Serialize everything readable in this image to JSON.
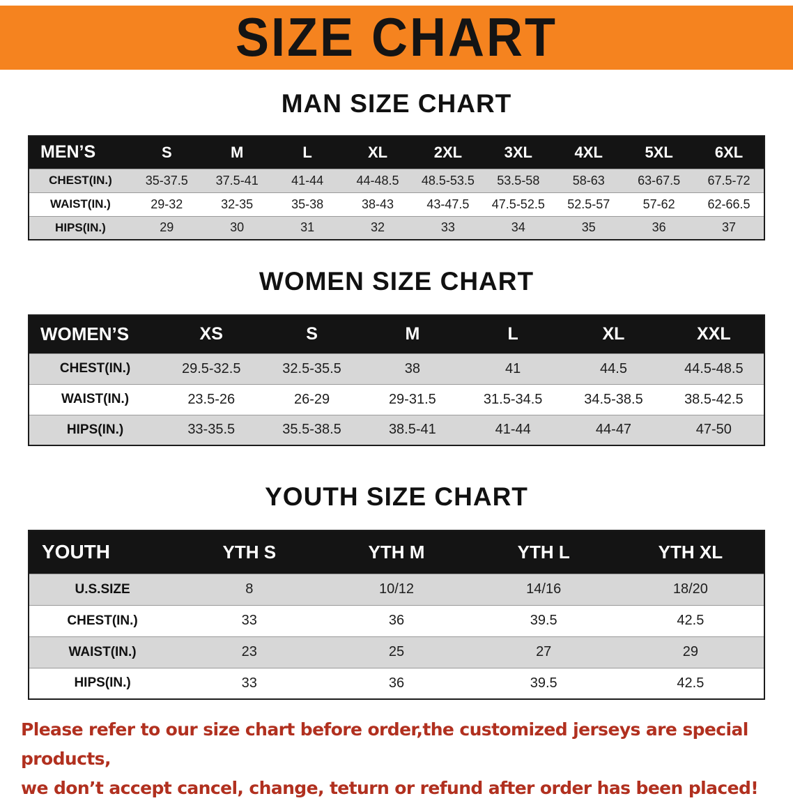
{
  "banner": {
    "title": "SIZE CHART",
    "bg_color": "#F5831F",
    "text_color": "#141414"
  },
  "colors": {
    "header_bar": "#141414",
    "stripe_gray": "#d7d7d7",
    "footnote_red": "#b1301f"
  },
  "sections": {
    "men": {
      "heading": "MAN SIZE CHART",
      "table": {
        "header": [
          "MEN’S",
          "S",
          "M",
          "L",
          "XL",
          "2XL",
          "3XL",
          "4XL",
          "5XL",
          "6XL"
        ],
        "rows": [
          [
            "CHEST(IN.)",
            "35-37.5",
            "37.5-41",
            "41-44",
            "44-48.5",
            "48.5-53.5",
            "53.5-58",
            "58-63",
            "63-67.5",
            "67.5-72"
          ],
          [
            "WAIST(IN.)",
            "29-32",
            "32-35",
            "35-38",
            "38-43",
            "43-47.5",
            "47.5-52.5",
            "52.5-57",
            "57-62",
            "62-66.5"
          ],
          [
            "HIPS(IN.)",
            "29",
            "30",
            "31",
            "32",
            "33",
            "34",
            "35",
            "36",
            "37"
          ]
        ]
      }
    },
    "women": {
      "heading": "WOMEN SIZE CHART",
      "table": {
        "header": [
          "WOMEN’S",
          "XS",
          "S",
          "M",
          "L",
          "XL",
          "XXL"
        ],
        "rows": [
          [
            "CHEST(IN.)",
            "29.5-32.5",
            "32.5-35.5",
            "38",
            "41",
            "44.5",
            "44.5-48.5"
          ],
          [
            "WAIST(IN.)",
            "23.5-26",
            "26-29",
            "29-31.5",
            "31.5-34.5",
            "34.5-38.5",
            "38.5-42.5"
          ],
          [
            "HIPS(IN.)",
            "33-35.5",
            "35.5-38.5",
            "38.5-41",
            "41-44",
            "44-47",
            "47-50"
          ]
        ]
      }
    },
    "youth": {
      "heading": "YOUTH SIZE CHART",
      "table": {
        "header": [
          "YOUTH",
          "YTH S",
          "YTH M",
          "YTH L",
          "YTH XL"
        ],
        "rows": [
          [
            "U.S.SIZE",
            "8",
            "10/12",
            "14/16",
            "18/20"
          ],
          [
            "CHEST(IN.)",
            "33",
            "36",
            "39.5",
            "42.5"
          ],
          [
            "WAIST(IN.)",
            "23",
            "25",
            "27",
            "29"
          ],
          [
            "HIPS(IN.)",
            "33",
            "36",
            "39.5",
            "42.5"
          ]
        ]
      }
    }
  },
  "footnote": {
    "line1": "Please refer to our size chart before order,the customized jerseys are special products,",
    "line2": "we don’t accept cancel, change, teturn or refund after order has been placed!"
  }
}
